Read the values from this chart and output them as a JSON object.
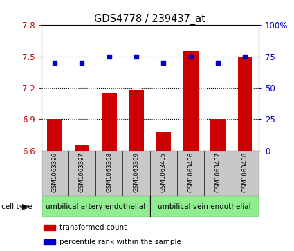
{
  "title": "GDS4778 / 239437_at",
  "samples": [
    "GSM1063396",
    "GSM1063397",
    "GSM1063398",
    "GSM1063399",
    "GSM1063405",
    "GSM1063406",
    "GSM1063407",
    "GSM1063408"
  ],
  "transformed_count": [
    6.9,
    6.65,
    7.15,
    7.18,
    6.78,
    7.55,
    6.9,
    7.5
  ],
  "percentile_rank": [
    70,
    70,
    75,
    75,
    70,
    75,
    70,
    75
  ],
  "cell_type_groups": [
    {
      "label": "umbilical artery endothelial",
      "start": 0,
      "end": 4,
      "color": "#90EE90"
    },
    {
      "label": "umbilical vein endothelial",
      "start": 4,
      "end": 8,
      "color": "#90EE90"
    }
  ],
  "ylim_left": [
    6.6,
    7.8
  ],
  "yticks_left": [
    6.6,
    6.9,
    7.2,
    7.5,
    7.8
  ],
  "ylim_right": [
    0,
    100
  ],
  "yticks_right": [
    0,
    25,
    50,
    75,
    100
  ],
  "ytick_labels_right": [
    "0",
    "25",
    "50",
    "75",
    "100%"
  ],
  "bar_color": "#CC0000",
  "dot_color": "#0000CC",
  "bar_width": 0.55,
  "legend_red": "transformed count",
  "legend_blue": "percentile rank within the sample",
  "cell_type_label": "cell type",
  "background_color": "#ffffff",
  "tick_label_color_left": "#CC0000",
  "tick_label_color_right": "#0000CC",
  "sample_bg_color": "#c8c8c8",
  "grid_linestyle": ":",
  "grid_linewidth": 0.8
}
